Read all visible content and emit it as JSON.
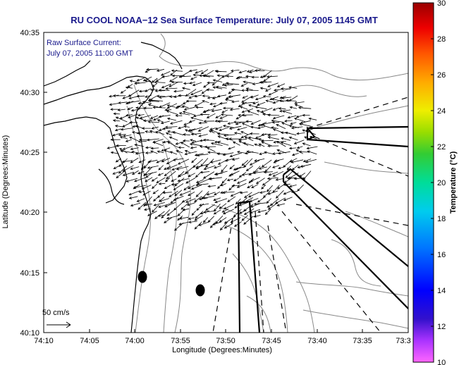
{
  "title": "RU COOL  NOAA−12  Sea Surface Temperature:  July 07, 2005 1145 GMT",
  "annotation": {
    "line1": "Raw Surface Current:",
    "line2": "July 07, 2005 11:00 GMT"
  },
  "scale": {
    "label": "50 cm/s"
  },
  "axes": {
    "xlabel": "Longitude (Degrees:Minutes)",
    "ylabel": "Latitude (Degrees:Minutes)",
    "xticks": [
      "74:10",
      "74:05",
      "74:00",
      "73:55",
      "73:50",
      "73:45",
      "73:40",
      "73:35",
      "73:3"
    ],
    "yticks": [
      "40:35",
      "40:30",
      "40:25",
      "40:20",
      "40:15",
      "40:10"
    ]
  },
  "colorbar": {
    "label": "Temperature (°C)",
    "ticks": [
      "30",
      "28",
      "26",
      "24",
      "22",
      "20",
      "18",
      "16",
      "14",
      "12",
      "10"
    ],
    "min": 10,
    "max": 30
  },
  "colors": {
    "title": "#1a1a8c",
    "land": "#000000",
    "contour": "#888888"
  }
}
